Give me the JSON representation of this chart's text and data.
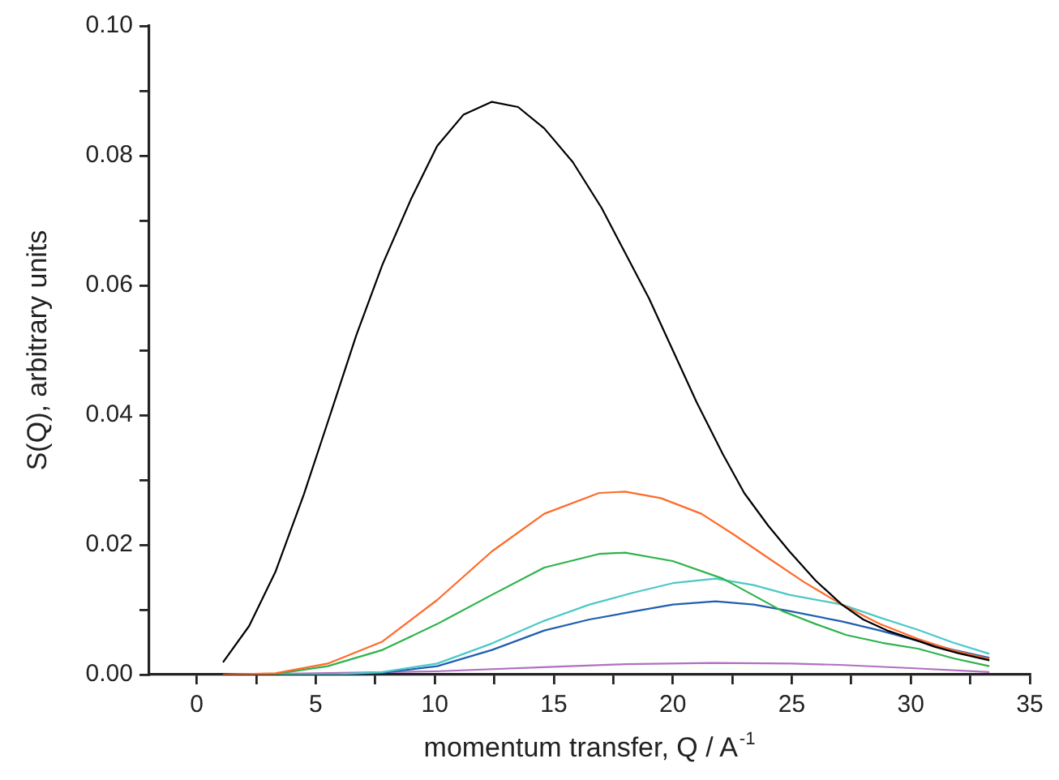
{
  "chart_data": {
    "type": "line",
    "xlabel": "momentum transfer, Q / A$^{-1}$",
    "ylabel": "S(Q), arbitrary units",
    "xlim": [
      -2,
      35
    ],
    "ylim": [
      0,
      0.1
    ],
    "xticks": [
      0,
      {
        "value": 2.5,
        "label": null
      },
      5,
      {
        "value": 7.5,
        "label": null
      },
      10,
      {
        "value": 12.5,
        "label": null
      },
      15,
      {
        "value": 17.5,
        "label": null
      },
      20,
      {
        "value": 22.5,
        "label": null
      },
      25,
      {
        "value": 27.5,
        "label": null
      },
      30,
      {
        "value": 32.5,
        "label": null
      },
      35
    ],
    "yticks": [
      {
        "value": 0,
        "label": "0.00"
      },
      {
        "value": 0.01,
        "label": null
      },
      {
        "value": 0.02,
        "label": "0.02"
      },
      {
        "value": 0.03,
        "label": null
      },
      {
        "value": 0.04,
        "label": "0.04"
      },
      {
        "value": 0.05,
        "label": null
      },
      {
        "value": 0.06,
        "label": "0.06"
      },
      {
        "value": 0.07,
        "label": null
      },
      {
        "value": 0.08,
        "label": "0.08"
      },
      {
        "value": 0.09,
        "label": null
      },
      {
        "value": 0.1,
        "label": "0.10"
      }
    ],
    "grid": false,
    "legend": false,
    "series": [
      {
        "color": "#000000",
        "x": [
          1.1,
          2.2,
          3.3,
          4.5,
          5.6,
          6.7,
          7.8,
          9,
          10.1,
          11.2,
          12.4,
          13.5,
          14.6,
          15.8,
          17,
          18,
          19,
          20,
          21,
          22.1,
          23,
          24,
          24.9,
          26,
          27.1,
          28,
          29,
          30.3,
          31,
          32,
          33.3
        ],
        "values": [
          0.0019,
          0.0075,
          0.0158,
          0.0278,
          0.04,
          0.0523,
          0.0632,
          0.0733,
          0.0815,
          0.0863,
          0.0883,
          0.0875,
          0.0842,
          0.079,
          0.072,
          0.065,
          0.058,
          0.05,
          0.042,
          0.034,
          0.028,
          0.023,
          0.019,
          0.0145,
          0.0108,
          0.0085,
          0.0068,
          0.0052,
          0.0043,
          0.0033,
          0.0022
        ]
      },
      {
        "color": "#ff6a2a",
        "x": [
          1.1,
          3.3,
          5.5,
          7.8,
          10.1,
          12.4,
          14.6,
          16.9,
          18,
          19.5,
          21.2,
          22.6,
          24,
          25.5,
          27.1,
          28.7,
          30.3,
          31.8,
          33.3
        ],
        "values": [
          0,
          0.0002,
          0.0017,
          0.0051,
          0.0115,
          0.019,
          0.0248,
          0.028,
          0.0282,
          0.0272,
          0.0248,
          0.0215,
          0.018,
          0.0143,
          0.0108,
          0.0078,
          0.0055,
          0.0037,
          0.0024
        ]
      },
      {
        "color": "#2db34a",
        "x": [
          1.1,
          3.3,
          5.5,
          7.8,
          10.1,
          12.4,
          14.6,
          16.9,
          18,
          20,
          22.1,
          23.4,
          24.6,
          26,
          27.3,
          28.8,
          30.3,
          31.8,
          33.3
        ],
        "values": [
          0,
          0.0001,
          0.0013,
          0.0038,
          0.0078,
          0.0123,
          0.0165,
          0.0186,
          0.0188,
          0.0175,
          0.0148,
          0.0122,
          0.0098,
          0.0078,
          0.0061,
          0.0049,
          0.004,
          0.0025,
          0.0013
        ]
      },
      {
        "color": "#4cc8c8",
        "x": [
          1.1,
          5.5,
          7.8,
          10.1,
          12.4,
          14.6,
          16.5,
          18.3,
          20,
          21.8,
          23.4,
          24.9,
          27.1,
          28.7,
          30.3,
          31.8,
          33.3
        ],
        "values": [
          0,
          0,
          0.0004,
          0.0017,
          0.0048,
          0.0083,
          0.0108,
          0.0126,
          0.0141,
          0.0148,
          0.0138,
          0.0123,
          0.0108,
          0.0088,
          0.0069,
          0.0049,
          0.0032
        ]
      },
      {
        "color": "#1f5fb0",
        "x": [
          1.1,
          5.5,
          7.8,
          10.1,
          12.4,
          14.6,
          16.5,
          18.3,
          20,
          21.8,
          23.4,
          24.9,
          27.1,
          28.7,
          30.3,
          31.8,
          33.3
        ],
        "values": [
          0,
          0,
          0.0003,
          0.0013,
          0.0038,
          0.0068,
          0.0085,
          0.0097,
          0.0108,
          0.0113,
          0.0108,
          0.0098,
          0.0082,
          0.0068,
          0.0052,
          0.0038,
          0.0026
        ]
      },
      {
        "color": "#b070c0",
        "x": [
          1.1,
          5,
          10,
          15,
          18,
          21.7,
          25,
          27,
          30,
          33.3
        ],
        "values": [
          0,
          0.0002,
          0.0005,
          0.0012,
          0.0016,
          0.0018,
          0.0017,
          0.0015,
          0.001,
          0.0004
        ]
      }
    ]
  }
}
